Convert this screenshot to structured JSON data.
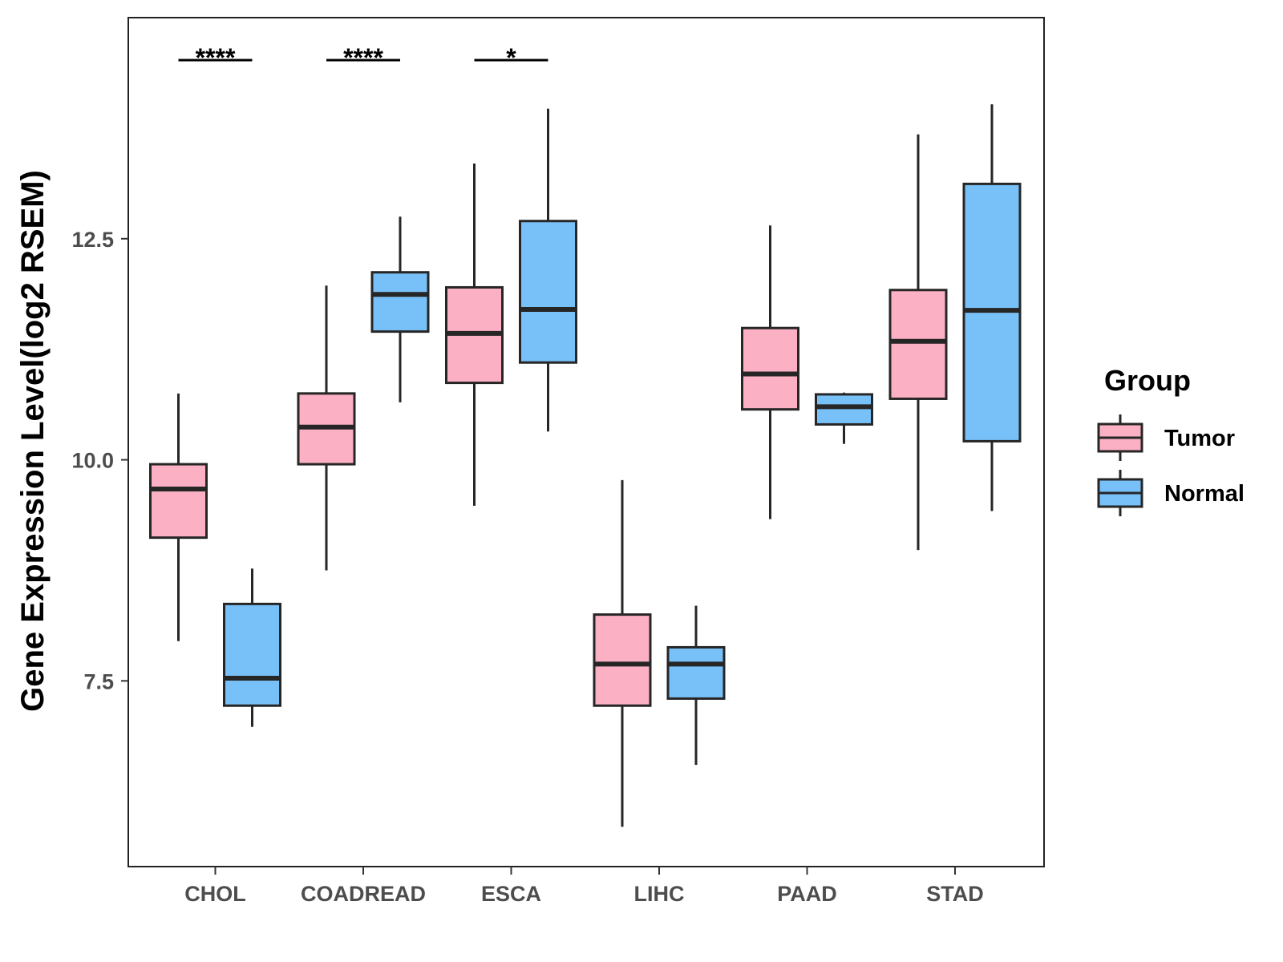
{
  "chart_data": {
    "type": "boxplot",
    "title": "",
    "xlabel": "",
    "ylabel": "Gene Expression Level(log2 RSEM)",
    "ylim": [
      5.4,
      15.0
    ],
    "yticks": [
      "7.5",
      "10.0",
      "12.5"
    ],
    "categories": [
      "CHOL",
      "COADREAD",
      "ESCA",
      "LIHC",
      "PAAD",
      "STAD"
    ],
    "legend": {
      "title": "Group",
      "position": "right",
      "entries": [
        {
          "name": "Tumor",
          "color": "#FBB1C3"
        },
        {
          "name": "Normal",
          "color": "#78C0F8"
        }
      ]
    },
    "series": [
      {
        "name": "Tumor",
        "color": "#FBB1C3",
        "boxes": [
          {
            "category": "CHOL",
            "min": 7.95,
            "q1": 9.12,
            "median": 9.67,
            "q3": 9.95,
            "max": 10.75
          },
          {
            "category": "COADREAD",
            "min": 8.75,
            "q1": 9.95,
            "median": 10.37,
            "q3": 10.75,
            "max": 11.97
          },
          {
            "category": "ESCA",
            "min": 9.48,
            "q1": 10.87,
            "median": 11.43,
            "q3": 11.95,
            "max": 13.35
          },
          {
            "category": "LIHC",
            "min": 5.85,
            "q1": 7.22,
            "median": 7.69,
            "q3": 8.25,
            "max": 9.77
          },
          {
            "category": "PAAD",
            "min": 9.33,
            "q1": 10.57,
            "median": 10.97,
            "q3": 11.49,
            "max": 12.65
          },
          {
            "category": "STAD",
            "min": 8.98,
            "q1": 10.69,
            "median": 11.34,
            "q3": 11.92,
            "max": 13.68
          }
        ]
      },
      {
        "name": "Normal",
        "color": "#78C0F8",
        "boxes": [
          {
            "category": "CHOL",
            "min": 6.98,
            "q1": 7.22,
            "median": 7.53,
            "q3": 8.37,
            "max": 8.77
          },
          {
            "category": "COADREAD",
            "min": 10.65,
            "q1": 11.45,
            "median": 11.87,
            "q3": 12.12,
            "max": 12.75
          },
          {
            "category": "ESCA",
            "min": 10.32,
            "q1": 11.1,
            "median": 11.7,
            "q3": 12.7,
            "max": 13.97
          },
          {
            "category": "LIHC",
            "min": 6.55,
            "q1": 7.3,
            "median": 7.69,
            "q3": 7.88,
            "max": 8.35
          },
          {
            "category": "PAAD",
            "min": 10.18,
            "q1": 10.4,
            "median": 10.6,
            "q3": 10.74,
            "max": 10.76
          },
          {
            "category": "STAD",
            "min": 9.42,
            "q1": 10.21,
            "median": 11.69,
            "q3": 13.12,
            "max": 14.02
          }
        ]
      }
    ],
    "annotations": [
      {
        "category": "CHOL",
        "label": "****"
      },
      {
        "category": "COADREAD",
        "label": "****"
      },
      {
        "category": "ESCA",
        "label": "*"
      }
    ]
  }
}
